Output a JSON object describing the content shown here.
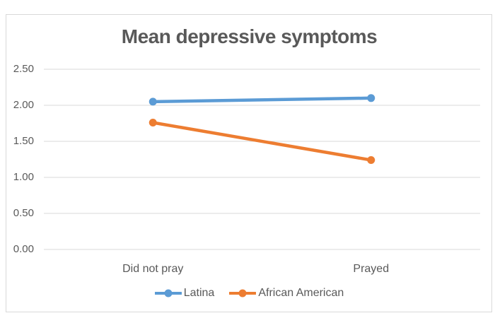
{
  "chart_data": {
    "type": "line",
    "title": "Mean depressive symptoms",
    "categories": [
      "Did not pray",
      "Prayed"
    ],
    "series": [
      {
        "name": "Latina",
        "color": "#5b9bd5",
        "values": [
          2.05,
          2.1
        ]
      },
      {
        "name": "African American",
        "color": "#ed7d31",
        "values": [
          1.76,
          1.24
        ]
      }
    ],
    "ylim": [
      0,
      2.5
    ],
    "ytick_step": 0.5,
    "ytick_labels": [
      "0.00",
      "0.50",
      "1.00",
      "1.50",
      "2.00",
      "2.50"
    ],
    "xlabel": "",
    "ylabel": "",
    "grid": "horizontal-only",
    "legend_position": "bottom-center",
    "marker": "circle"
  },
  "colors": {
    "title_text": "#595959",
    "axis_text": "#595959",
    "gridline": "#d9d9d9",
    "frame_border": "#d9d9d9",
    "background": "#ffffff"
  }
}
